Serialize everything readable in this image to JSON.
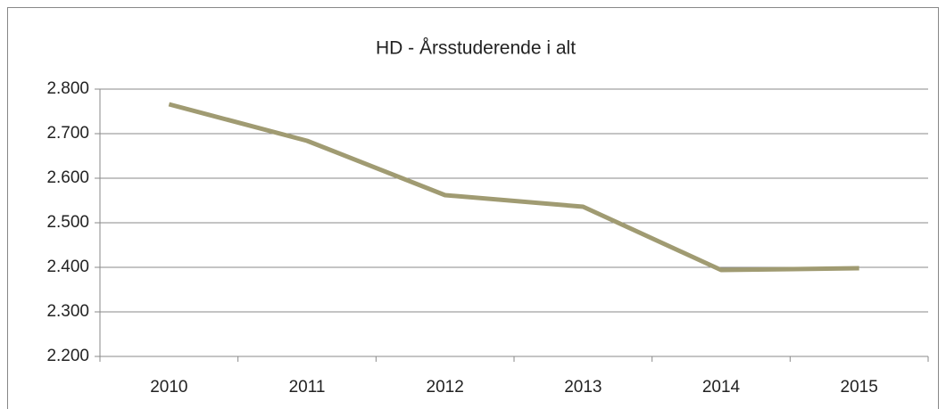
{
  "chart_data": {
    "type": "line",
    "title": "HD - Årsstuderende i alt",
    "categories": [
      "2010",
      "2011",
      "2012",
      "2013",
      "2014",
      "2015"
    ],
    "values": [
      2766,
      2684,
      2562,
      2536,
      2394,
      2398
    ],
    "color": "#a09b72",
    "ylim": [
      2200,
      2800
    ],
    "yticks": [
      {
        "value": 2200,
        "label": "2.200"
      },
      {
        "value": 2300,
        "label": "2.300"
      },
      {
        "value": 2400,
        "label": "2.400"
      },
      {
        "value": 2500,
        "label": "2.500"
      },
      {
        "value": 2600,
        "label": "2.600"
      },
      {
        "value": 2700,
        "label": "2.700"
      },
      {
        "value": 2800,
        "label": "2.800"
      }
    ],
    "grid": true
  }
}
